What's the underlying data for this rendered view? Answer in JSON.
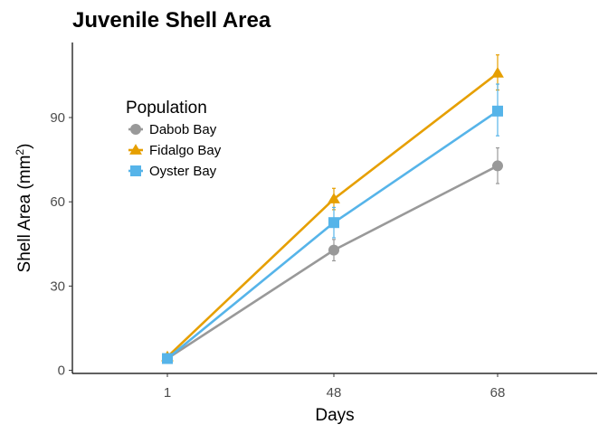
{
  "chart_data": {
    "type": "line",
    "title": "Juvenile Shell Area",
    "xlabel": "Days",
    "ylabel_main": "Shell Area (mm",
    "ylabel_sup": "2",
    "ylabel_end": ")",
    "categories": [
      "1",
      "48",
      "68"
    ],
    "ylim": [
      -1,
      115
    ],
    "yticks": [
      0,
      30,
      60,
      90
    ],
    "grid": false,
    "legend": {
      "title": "Population",
      "placement": "top-left"
    },
    "series": [
      {
        "name": "Dabob Bay",
        "color": "#999999",
        "marker": "circle",
        "values": [
          4.2,
          42.8,
          72.8
        ],
        "err_low": [
          3.4,
          39.0,
          66.5
        ],
        "err_high": [
          5.0,
          46.6,
          79.2
        ]
      },
      {
        "name": "Fidalgo Bay",
        "color": "#E69F00",
        "marker": "triangle",
        "values": [
          4.8,
          61.0,
          105.8
        ],
        "err_low": [
          4.0,
          57.2,
          99.8
        ],
        "err_high": [
          5.6,
          64.8,
          112.3
        ]
      },
      {
        "name": "Oyster Bay",
        "color": "#56B4E9",
        "marker": "square",
        "values": [
          4.2,
          52.6,
          92.3
        ],
        "err_low": [
          3.4,
          47.2,
          83.5
        ],
        "err_high": [
          5.0,
          58.0,
          101.9
        ]
      }
    ]
  }
}
